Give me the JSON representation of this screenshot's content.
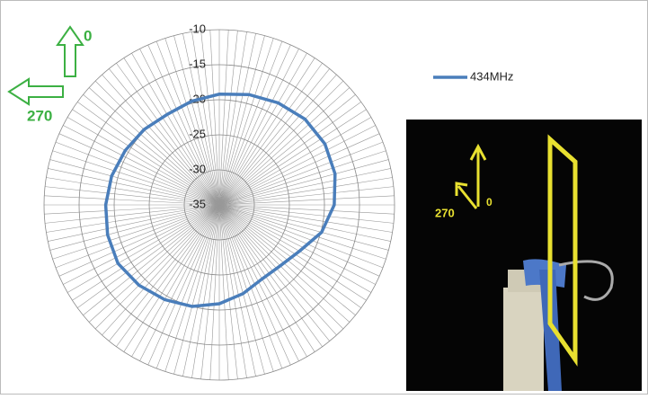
{
  "chart_data": {
    "type": "radar",
    "x": [
      0,
      15,
      30,
      45,
      60,
      75,
      90,
      105,
      120,
      135,
      150,
      165,
      180,
      195,
      210,
      225,
      240,
      255,
      270,
      285,
      300,
      315,
      330,
      345
    ],
    "series": [
      {
        "name": "434MHz",
        "color": "#4a7ebb",
        "values": [
          -19.2,
          -18.7,
          -18.2,
          -17.7,
          -17.6,
          -17.9,
          -18.6,
          -19.9,
          -21.8,
          -22.7,
          -22.8,
          -21.9,
          -20.9,
          -20.0,
          -19.4,
          -18.8,
          -18.3,
          -18.5,
          -18.8,
          -19.1,
          -19.5,
          -19.8,
          -20.1,
          -19.7
        ]
      }
    ],
    "ylim": [
      -35,
      -10
    ],
    "yticks": [
      -10,
      -15,
      -20,
      -25,
      -30,
      -35
    ],
    "grid": true,
    "legend": "top-right",
    "annotations": {
      "arrow_up": "0",
      "arrow_left": "270",
      "photo_left": "270",
      "photo_up": "0"
    }
  }
}
